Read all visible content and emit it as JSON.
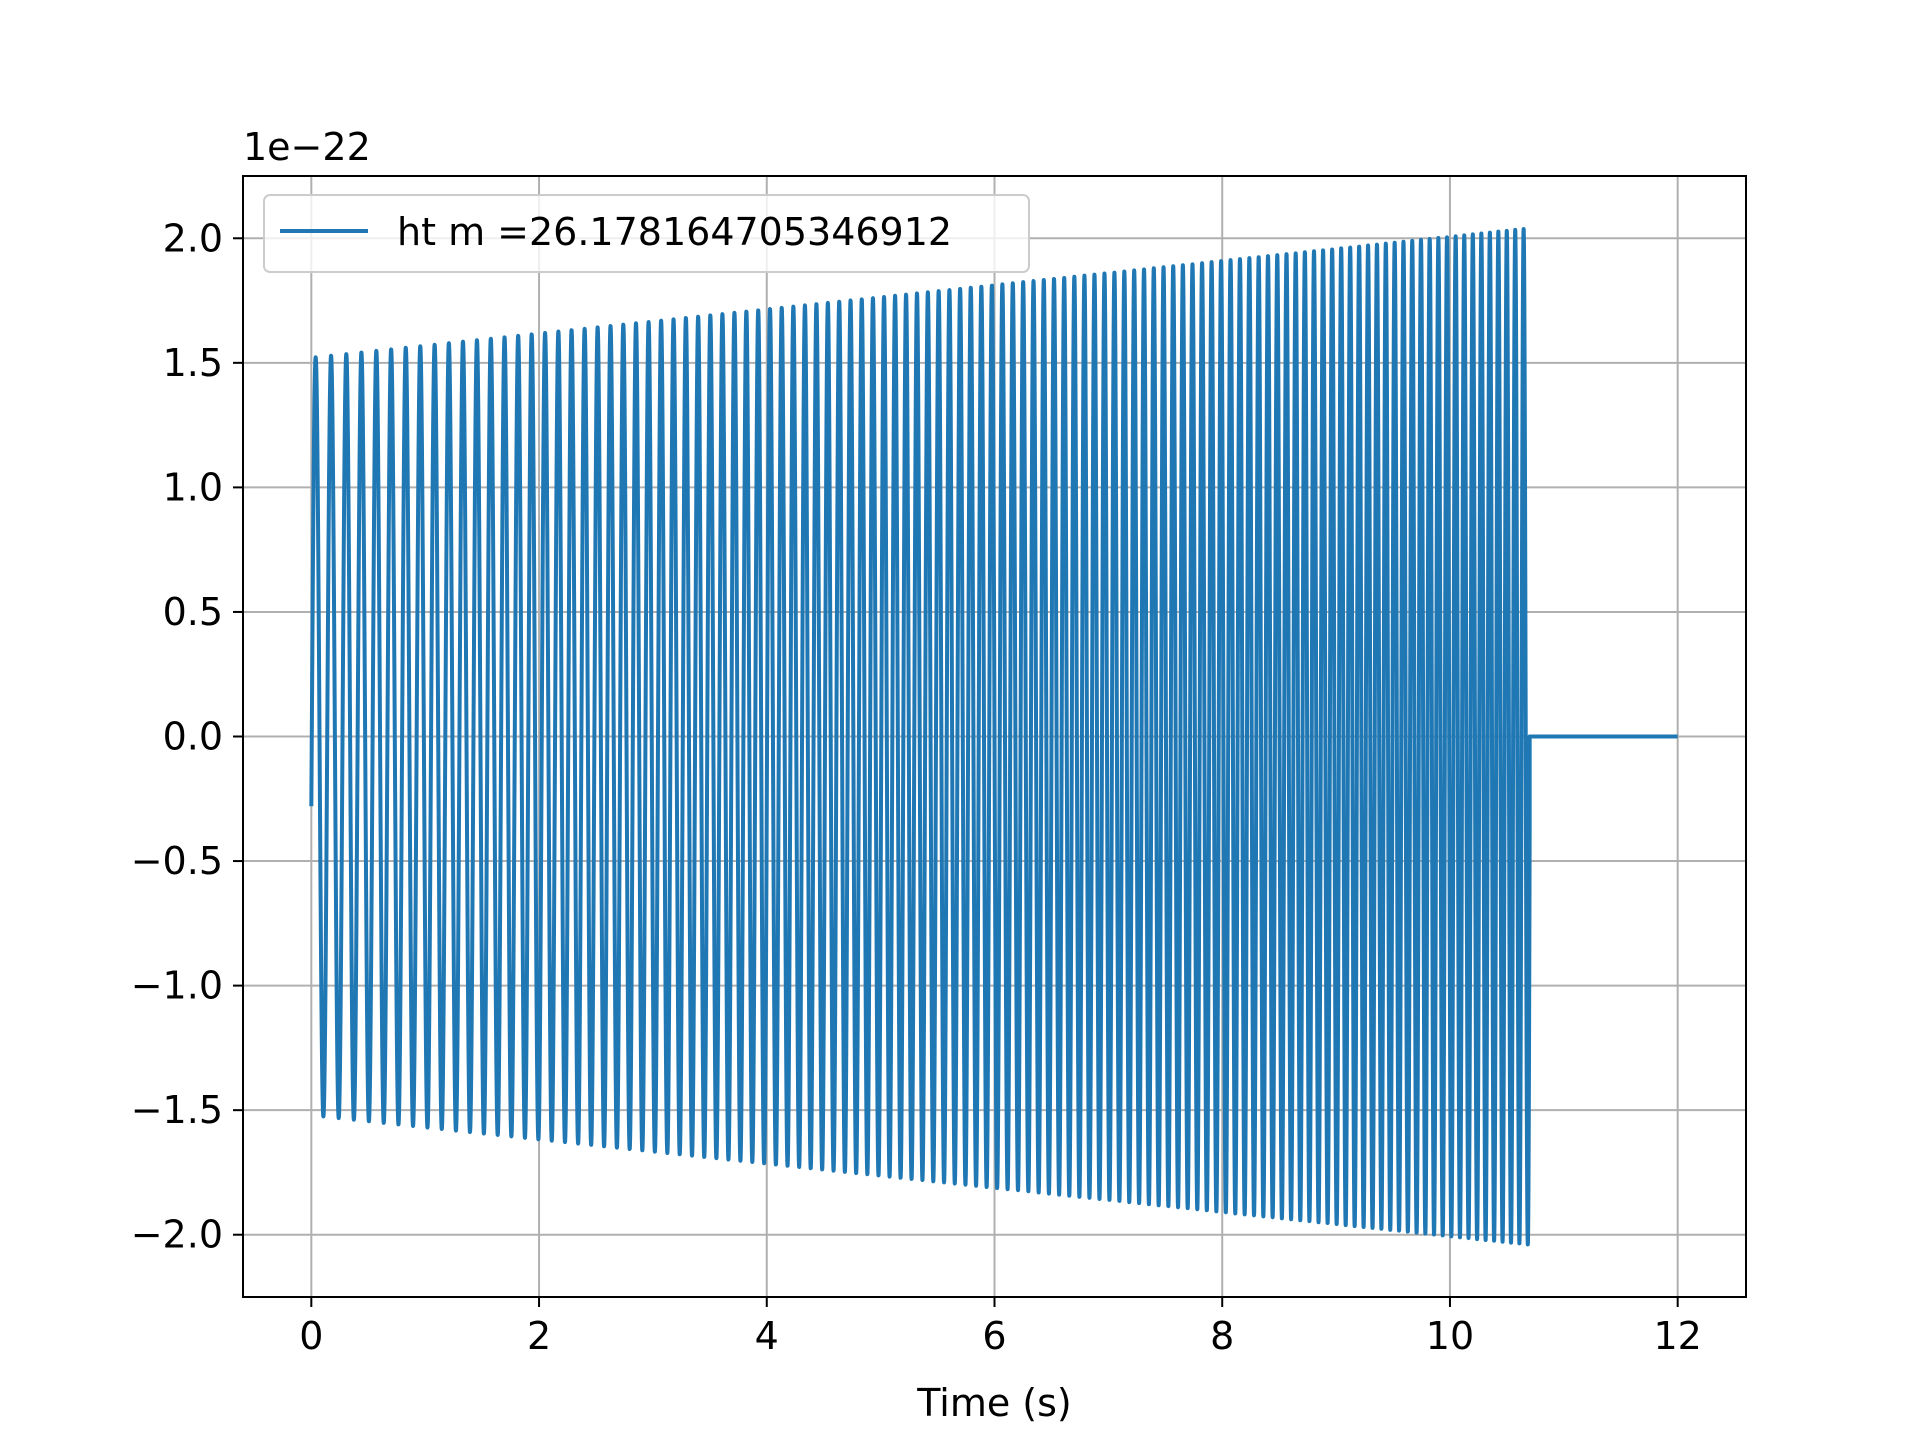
{
  "chart_data": {
    "type": "line",
    "title": "",
    "xlabel": "Time (s)",
    "ylabel": "",
    "y_offset_text": "1e−22",
    "xlim": [
      -0.6,
      12.6
    ],
    "ylim": [
      -2.25,
      2.25
    ],
    "x_ticks": [
      0,
      2,
      4,
      6,
      8,
      10,
      12
    ],
    "x_tick_labels": [
      "0",
      "2",
      "4",
      "6",
      "8",
      "10",
      "12"
    ],
    "y_ticks": [
      -2.0,
      -1.5,
      -1.0,
      -0.5,
      0.0,
      0.5,
      1.0,
      1.5,
      2.0
    ],
    "y_tick_labels": [
      "−2.0",
      "−1.5",
      "−1.0",
      "−0.5",
      "0.0",
      "0.5",
      "1.0",
      "1.5",
      "2.0"
    ],
    "grid": true,
    "legend_position": "top-left",
    "series": [
      {
        "name": "ht m =26.178164705346912",
        "color": "#1f77b4",
        "waveform": "chirp",
        "t_start": 0.0,
        "t_merger": 10.7,
        "t_end": 12.0,
        "start_value": -0.28,
        "amplitude_start": 1.52,
        "amplitude_merger": 2.04,
        "cycles": 112,
        "post_merger_value": 0.0
      }
    ]
  }
}
